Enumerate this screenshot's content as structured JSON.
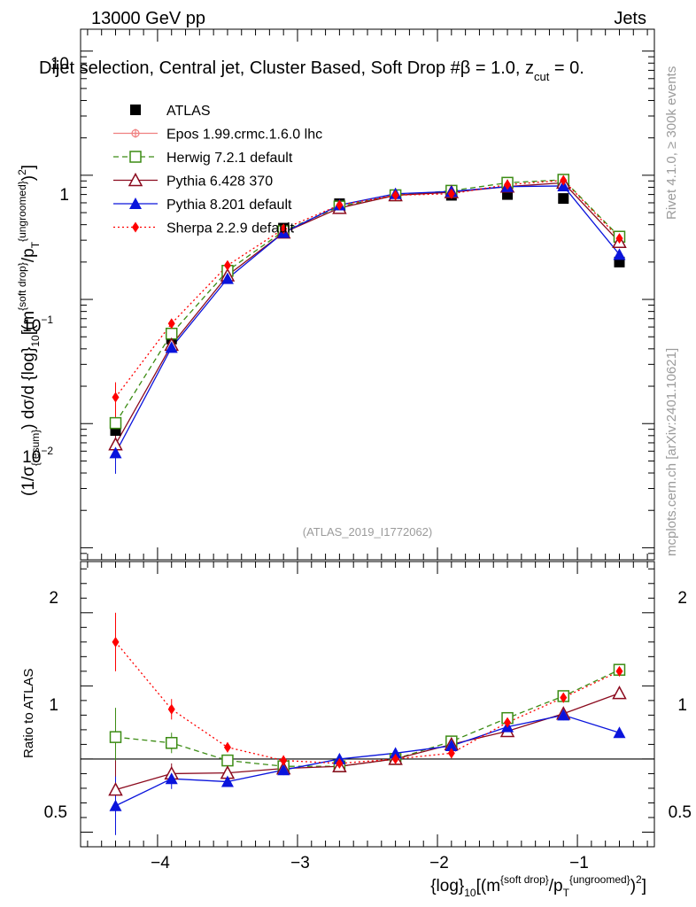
{
  "header": {
    "left": "13000 GeV pp",
    "right": "Jets",
    "title": "Dijet selection, Central jet, Cluster Based, Soft Drop #β = 1.0, z",
    "title_sub": "cut",
    "title_end": " = 0.",
    "watermark": "(ATLAS_2019_I1772062)",
    "side_top": "Rivet 4.1.0, ≥ 300k events",
    "side_bottom": "mcplots.cern.ch [arXiv:2401.10621]"
  },
  "axes": {
    "ylabel_top": "(1/σ{resum}) dσ/d {log}10[(m{soft drop}/pT{ungroomed})2]",
    "ylabel_bottom": "Ratio to ATLAS",
    "xlabel": "{log}10[(m{soft drop}/pT{ungroomed})2]",
    "xticks": [
      -4,
      -3,
      -2,
      -1
    ],
    "xtick_labels": [
      "−4",
      "−3",
      "−2",
      "−1"
    ],
    "top_ylabels": [
      "10",
      "1",
      "10",
      "10"
    ],
    "top_yexps": [
      "",
      "",
      "−1",
      "−2"
    ],
    "ratio_ylabels": [
      "2",
      "1",
      "0.5"
    ]
  },
  "legend": [
    {
      "label": "ATLAS",
      "color": "#000000",
      "marker": "square-filled",
      "dash": "none"
    },
    {
      "label": "Epos 1.99.crmc.1.6.0 lhc",
      "color": "#f08080",
      "marker": "cross-circle",
      "dash": "solid"
    },
    {
      "label": "Herwig 7.2.1 default",
      "color": "#3c8c14",
      "marker": "square-open",
      "dash": "dashed"
    },
    {
      "label": "Pythia 6.428 370",
      "color": "#8b0a1e",
      "marker": "triangle-open",
      "dash": "solid"
    },
    {
      "label": "Pythia 8.201 default",
      "color": "#0a14dc",
      "marker": "triangle-filled",
      "dash": "solid"
    },
    {
      "label": "Sherpa 2.2.9 default",
      "color": "#ff0000",
      "marker": "diamond-filled",
      "dash": "dotted"
    }
  ],
  "chart_data": [
    {
      "type": "line",
      "title": "Dijet selection, Central jet, Cluster Based, Soft Drop β = 1.0, z_cut = 0.",
      "xlabel": "{log}10[(m{soft drop}/pT{ungroomed})2]",
      "ylabel": "(1/σ{resum}) dσ/d {log}10[(m{soft drop}/pT{ungroomed})2]",
      "xlim": [
        -4.55,
        -0.45
      ],
      "ylim": [
        0.0008,
        15
      ],
      "yscale": "log",
      "x": [
        -4.3,
        -3.9,
        -3.5,
        -3.1,
        -2.7,
        -2.3,
        -1.9,
        -1.5,
        -1.1,
        -0.7
      ],
      "series": [
        {
          "name": "ATLAS",
          "values": [
            0.0088,
            0.048,
            0.172,
            0.375,
            0.59,
            0.69,
            0.69,
            0.7,
            0.65,
            0.2
          ]
        },
        {
          "name": "Herwig 7.2.1 default",
          "values": [
            0.0101,
            0.053,
            0.17,
            0.355,
            0.56,
            0.69,
            0.75,
            0.87,
            0.92,
            0.32
          ]
        },
        {
          "name": "Pythia 6.428 370",
          "values": [
            0.0068,
            0.043,
            0.156,
            0.345,
            0.545,
            0.69,
            0.73,
            0.81,
            0.87,
            0.29
          ]
        },
        {
          "name": "Pythia 8.201 default",
          "values": [
            0.0058,
            0.041,
            0.147,
            0.345,
            0.575,
            0.71,
            0.74,
            0.81,
            0.82,
            0.23
          ]
        },
        {
          "name": "Sherpa 2.2.9 default",
          "values": [
            0.0163,
            0.064,
            0.188,
            0.37,
            0.575,
            0.69,
            0.71,
            0.84,
            0.91,
            0.31
          ]
        }
      ]
    },
    {
      "type": "line",
      "title": "Ratio to ATLAS",
      "xlabel": "{log}10[(m{soft drop}/pT{ungroomed})2]",
      "ylabel": "Ratio to ATLAS",
      "xlim": [
        -4.55,
        -0.45
      ],
      "ylim": [
        0.4,
        2.35
      ],
      "x": [
        -4.3,
        -3.9,
        -3.5,
        -3.1,
        -2.7,
        -2.3,
        -1.9,
        -1.5,
        -1.1,
        -0.7
      ],
      "series": [
        {
          "name": "Herwig 7.2.1 default",
          "values": [
            1.15,
            1.11,
            0.99,
            0.95,
            0.95,
            1.0,
            1.12,
            1.28,
            1.43,
            1.61
          ]
        },
        {
          "name": "Pythia 6.428 370",
          "values": [
            0.79,
            0.9,
            0.905,
            0.935,
            0.95,
            1.0,
            1.1,
            1.19,
            1.31,
            1.45
          ]
        },
        {
          "name": "Pythia 8.201 default",
          "values": [
            0.68,
            0.865,
            0.845,
            0.925,
            1.0,
            1.04,
            1.09,
            1.22,
            1.3,
            1.18
          ]
        },
        {
          "name": "Sherpa 2.2.9 default",
          "values": [
            1.8,
            1.34,
            1.08,
            0.99,
            0.97,
            1.0,
            1.04,
            1.25,
            1.42,
            1.6
          ]
        }
      ],
      "reference": 1.0
    }
  ]
}
